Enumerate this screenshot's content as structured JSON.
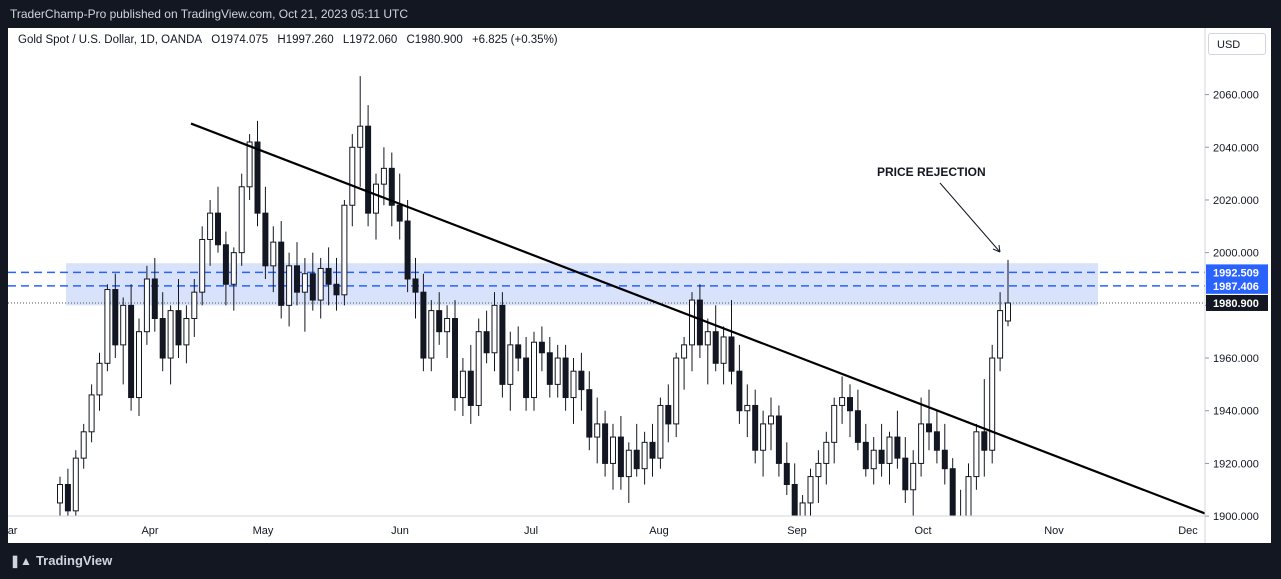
{
  "header": {
    "publish_text": "TraderChamp-Pro published on TradingView.com, Oct 21, 2023 05:11 UTC"
  },
  "symbol_bar": {
    "name": "Gold Spot / U.S. Dollar, 1D, OANDA",
    "open": "O1974.075",
    "high": "H1997.260",
    "low": "L1972.060",
    "close": "C1980.900",
    "change": "+6.825 (+0.35%)"
  },
  "currency_button": "USD",
  "footer": {
    "brand": "TradingView",
    "logo_icon": "tradingview-logo-icon"
  },
  "chart_data": {
    "type": "candlestick",
    "ylim": [
      1898,
      2078
    ],
    "y_ticks": [
      "2060.000",
      "2040.000",
      "2020.000",
      "2000.000",
      "1980.000",
      "1960.000",
      "1940.000",
      "1920.000",
      "1900.000"
    ],
    "y_tick_values": [
      2060,
      2040,
      2020,
      2000,
      1980,
      1960,
      1940,
      1920,
      1900
    ],
    "x_ticks": [
      "Mar",
      "Apr",
      "May",
      "Jun",
      "Jul",
      "Aug",
      "Sep",
      "Oct",
      "Nov",
      "Dec"
    ],
    "annotation": "PRICE REJECTION",
    "price_labels": [
      {
        "text": "1992.509",
        "value": 1992.509,
        "color": "#2962ff"
      },
      {
        "text": "1987.406",
        "value": 1987.406,
        "color": "#2962ff"
      },
      {
        "text": "1980.900",
        "value": 1980.9,
        "color": "#131722"
      }
    ],
    "zone": {
      "top": 1996.0,
      "bottom": 1980.0,
      "color": "#d6e0fa"
    },
    "trendline": [
      {
        "date": "Apr 13",
        "value": 2049
      },
      {
        "date": "Dec 5",
        "value": 1901
      }
    ],
    "candles": [
      [
        1905,
        1915,
        1880,
        1912
      ],
      [
        1912,
        1918,
        1900,
        1902
      ],
      [
        1902,
        1925,
        1900,
        1922
      ],
      [
        1922,
        1935,
        1918,
        1932
      ],
      [
        1932,
        1950,
        1928,
        1946
      ],
      [
        1946,
        1962,
        1940,
        1958
      ],
      [
        1958,
        1988,
        1955,
        1986
      ],
      [
        1986,
        1992,
        1960,
        1965
      ],
      [
        1965,
        1983,
        1950,
        1980
      ],
      [
        1980,
        1988,
        1940,
        1945
      ],
      [
        1945,
        1975,
        1938,
        1970
      ],
      [
        1970,
        1995,
        1965,
        1990
      ],
      [
        1990,
        1998,
        1970,
        1975
      ],
      [
        1975,
        1985,
        1955,
        1960
      ],
      [
        1960,
        1980,
        1950,
        1978
      ],
      [
        1978,
        1990,
        1960,
        1965
      ],
      [
        1965,
        1980,
        1958,
        1975
      ],
      [
        1975,
        1990,
        1968,
        1985
      ],
      [
        1985,
        2010,
        1980,
        2005
      ],
      [
        2005,
        2020,
        1995,
        2015
      ],
      [
        2015,
        2025,
        2000,
        2003
      ],
      [
        2003,
        2008,
        1980,
        1988
      ],
      [
        1988,
        2002,
        1978,
        2000
      ],
      [
        2000,
        2030,
        1995,
        2025
      ],
      [
        2025,
        2045,
        2020,
        2042
      ],
      [
        2042,
        2050,
        2010,
        2015
      ],
      [
        2015,
        2025,
        1990,
        1995
      ],
      [
        1995,
        2010,
        1985,
        2004
      ],
      [
        2004,
        2012,
        1975,
        1980
      ],
      [
        1980,
        2000,
        1972,
        1995
      ],
      [
        1995,
        2004,
        1980,
        1985
      ],
      [
        1985,
        1998,
        1970,
        1992
      ],
      [
        1992,
        2000,
        1978,
        1982
      ],
      [
        1982,
        1998,
        1975,
        1994
      ],
      [
        1994,
        2002,
        1980,
        1988
      ],
      [
        1988,
        1998,
        1978,
        1984
      ],
      [
        1984,
        2020,
        1980,
        2018
      ],
      [
        2018,
        2045,
        2010,
        2040
      ],
      [
        2040,
        2067,
        2025,
        2048
      ],
      [
        2048,
        2056,
        2010,
        2015
      ],
      [
        2015,
        2030,
        2005,
        2026
      ],
      [
        2026,
        2040,
        2018,
        2032
      ],
      [
        2032,
        2038,
        2010,
        2018
      ],
      [
        2018,
        2030,
        2005,
        2012
      ],
      [
        2012,
        2020,
        1985,
        1990
      ],
      [
        1990,
        1998,
        1975,
        1985
      ],
      [
        1985,
        1992,
        1955,
        1960
      ],
      [
        1960,
        1982,
        1955,
        1978
      ],
      [
        1978,
        1985,
        1965,
        1970
      ],
      [
        1970,
        1980,
        1960,
        1975
      ],
      [
        1975,
        1982,
        1940,
        1945
      ],
      [
        1945,
        1960,
        1938,
        1955
      ],
      [
        1955,
        1965,
        1935,
        1942
      ],
      [
        1942,
        1975,
        1938,
        1970
      ],
      [
        1970,
        1978,
        1958,
        1962
      ],
      [
        1962,
        1985,
        1955,
        1980
      ],
      [
        1980,
        1985,
        1945,
        1950
      ],
      [
        1950,
        1970,
        1940,
        1965
      ],
      [
        1965,
        1972,
        1955,
        1960
      ],
      [
        1960,
        1968,
        1940,
        1945
      ],
      [
        1945,
        1970,
        1940,
        1966
      ],
      [
        1966,
        1972,
        1955,
        1962
      ],
      [
        1962,
        1968,
        1945,
        1950
      ],
      [
        1950,
        1965,
        1945,
        1960
      ],
      [
        1960,
        1965,
        1940,
        1945
      ],
      [
        1945,
        1960,
        1935,
        1955
      ],
      [
        1955,
        1962,
        1940,
        1948
      ],
      [
        1948,
        1955,
        1925,
        1930
      ],
      [
        1930,
        1945,
        1920,
        1935
      ],
      [
        1935,
        1940,
        1915,
        1920
      ],
      [
        1920,
        1935,
        1910,
        1930
      ],
      [
        1930,
        1938,
        1910,
        1915
      ],
      [
        1915,
        1928,
        1905,
        1925
      ],
      [
        1925,
        1935,
        1915,
        1918
      ],
      [
        1918,
        1932,
        1912,
        1928
      ],
      [
        1928,
        1935,
        1915,
        1922
      ],
      [
        1922,
        1945,
        1918,
        1942
      ],
      [
        1942,
        1950,
        1928,
        1935
      ],
      [
        1935,
        1962,
        1930,
        1960
      ],
      [
        1960,
        1968,
        1948,
        1965
      ],
      [
        1965,
        1985,
        1955,
        1982
      ],
      [
        1982,
        1988,
        1960,
        1965
      ],
      [
        1965,
        1975,
        1950,
        1970
      ],
      [
        1970,
        1980,
        1955,
        1958
      ],
      [
        1958,
        1972,
        1950,
        1968
      ],
      [
        1968,
        1982,
        1950,
        1955
      ],
      [
        1955,
        1965,
        1935,
        1940
      ],
      [
        1940,
        1950,
        1930,
        1942
      ],
      [
        1942,
        1948,
        1920,
        1925
      ],
      [
        1925,
        1940,
        1915,
        1935
      ],
      [
        1935,
        1945,
        1925,
        1938
      ],
      [
        1938,
        1942,
        1915,
        1920
      ],
      [
        1920,
        1928,
        1908,
        1912
      ],
      [
        1912,
        1920,
        1895,
        1898
      ],
      [
        1898,
        1908,
        1890,
        1905
      ],
      [
        1905,
        1918,
        1900,
        1915
      ],
      [
        1915,
        1925,
        1905,
        1920
      ],
      [
        1920,
        1932,
        1912,
        1928
      ],
      [
        1928,
        1945,
        1920,
        1942
      ],
      [
        1942,
        1953,
        1935,
        1945
      ],
      [
        1945,
        1950,
        1930,
        1940
      ],
      [
        1940,
        1948,
        1925,
        1928
      ],
      [
        1928,
        1935,
        1915,
        1918
      ],
      [
        1918,
        1930,
        1912,
        1925
      ],
      [
        1925,
        1935,
        1915,
        1920
      ],
      [
        1920,
        1932,
        1912,
        1930
      ],
      [
        1930,
        1940,
        1918,
        1922
      ],
      [
        1922,
        1930,
        1905,
        1910
      ],
      [
        1910,
        1925,
        1900,
        1920
      ],
      [
        1920,
        1945,
        1915,
        1935
      ],
      [
        1935,
        1948,
        1925,
        1932
      ],
      [
        1932,
        1940,
        1920,
        1925
      ],
      [
        1925,
        1935,
        1912,
        1918
      ],
      [
        1918,
        1922,
        1895,
        1900
      ],
      [
        1900,
        1910,
        1885,
        1890
      ],
      [
        1890,
        1920,
        1885,
        1915
      ],
      [
        1915,
        1935,
        1910,
        1932
      ],
      [
        1932,
        1952,
        1915,
        1925
      ],
      [
        1925,
        1965,
        1920,
        1960
      ],
      [
        1960,
        1985,
        1955,
        1978
      ],
      [
        1974.075,
        1997.26,
        1972.06,
        1980.9
      ]
    ]
  }
}
